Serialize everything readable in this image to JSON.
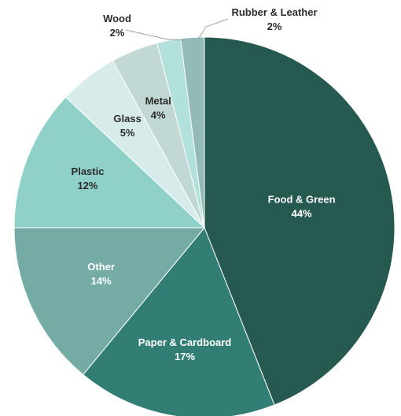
{
  "chart_data": {
    "type": "pie",
    "title": "",
    "colors": {
      "label_dark": "#2b2b2b",
      "label_light": "#ffffff",
      "leader_line": "#9aa5a3",
      "slice_border": "#ffffff"
    },
    "slices": [
      {
        "name": "Food & Green",
        "value": 44,
        "label": "44%",
        "color": "#26594f"
      },
      {
        "name": "Paper & Cardboard",
        "value": 17,
        "label": "17%",
        "color": "#337e74"
      },
      {
        "name": "Other",
        "value": 14,
        "label": "14%",
        "color": "#74aba5"
      },
      {
        "name": "Plastic",
        "value": 12,
        "label": "12%",
        "color": "#8fd1c8"
      },
      {
        "name": "Glass",
        "value": 5,
        "label": "5%",
        "color": "#d7ecea"
      },
      {
        "name": "Metal",
        "value": 4,
        "label": "4%",
        "color": "#c2d8d5"
      },
      {
        "name": "Wood",
        "value": 2,
        "label": "2%",
        "color": "#b2e1db"
      },
      {
        "name": "Rubber & Leather",
        "value": 2,
        "label": "2%",
        "color": "#93bab6"
      }
    ]
  }
}
